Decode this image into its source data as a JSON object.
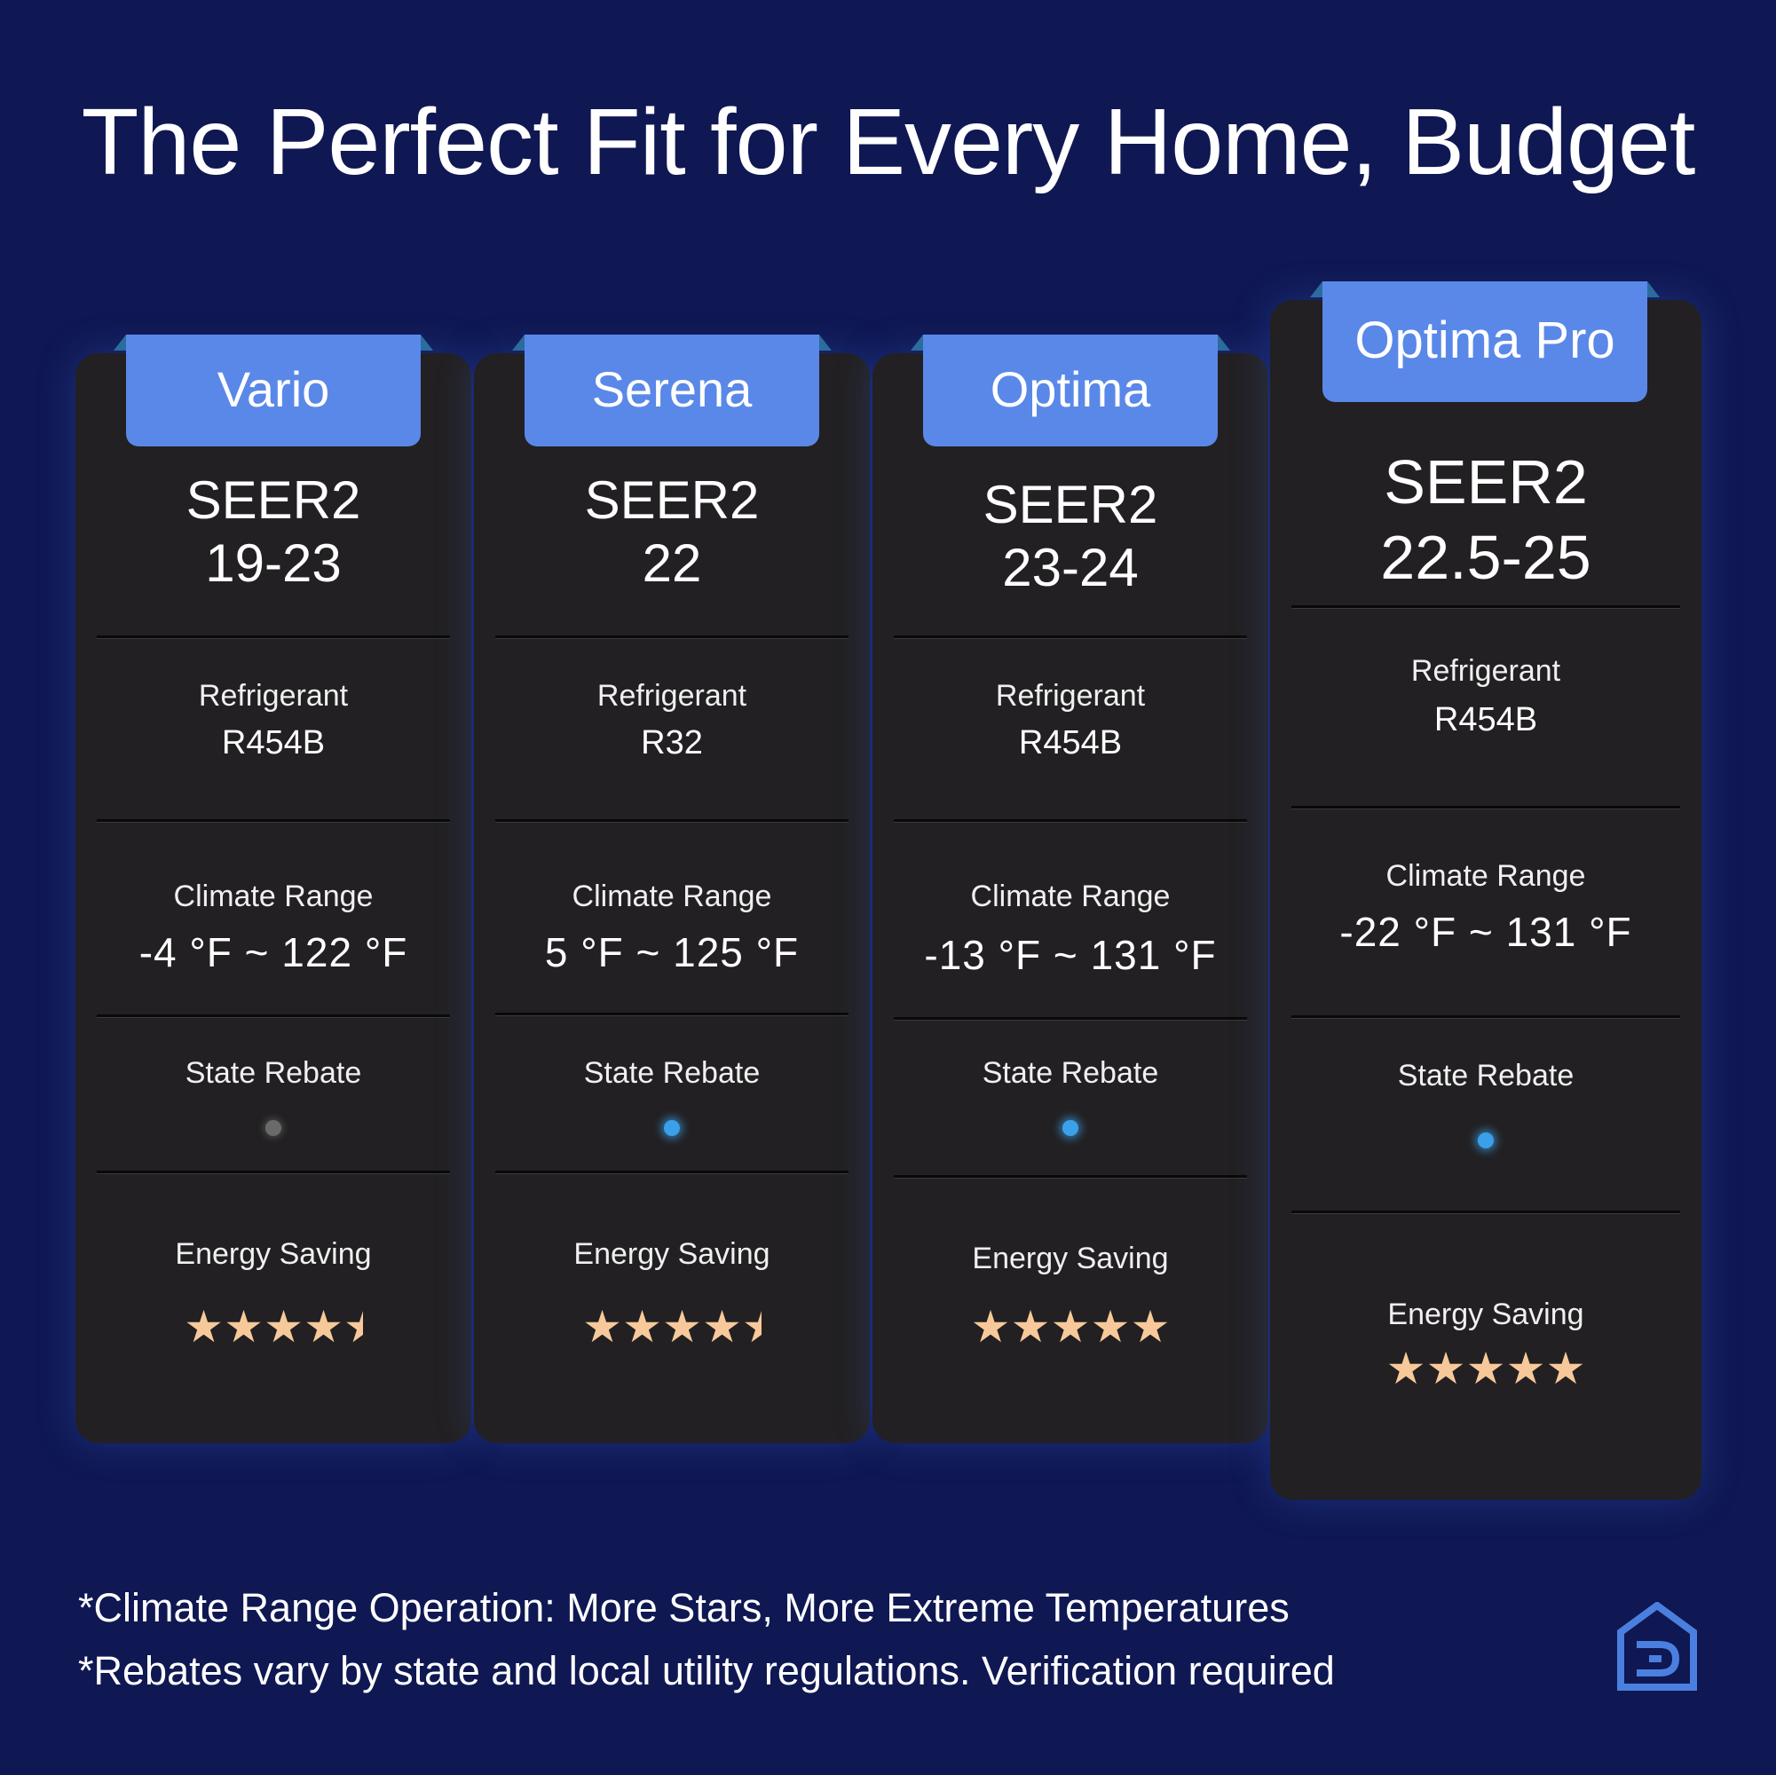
{
  "title": "The Perfect Fit for Every Home, Budget",
  "products": [
    {
      "name": "Vario",
      "seer_label": "SEER2",
      "seer_value": "19-23",
      "refrigerant_label": "Refrigerant",
      "refrigerant": "R454B",
      "climate_label": "Climate Range",
      "climate_range": "-4 °F ~ 122 °F",
      "rebate_label": "State Rebate",
      "state_rebate": false,
      "energy_label": "Energy Saving",
      "energy_stars": 4.5
    },
    {
      "name": "Serena",
      "seer_label": "SEER2",
      "seer_value": "22",
      "refrigerant_label": "Refrigerant",
      "refrigerant": "R32",
      "climate_label": "Climate Range",
      "climate_range": "5 °F ~ 125 °F",
      "rebate_label": "State Rebate",
      "state_rebate": true,
      "energy_label": "Energy Saving",
      "energy_stars": 4.5
    },
    {
      "name": "Optima",
      "seer_label": "SEER2",
      "seer_value": "23-24",
      "refrigerant_label": "Refrigerant",
      "refrigerant": "R454B",
      "climate_label": "Climate Range",
      "climate_range": "-13 °F ~ 131 °F",
      "rebate_label": "State Rebate",
      "state_rebate": true,
      "energy_label": "Energy Saving",
      "energy_stars": 5
    },
    {
      "name": "Optima Pro",
      "seer_label": "SEER2",
      "seer_value": "22.5-25",
      "refrigerant_label": "Refrigerant",
      "refrigerant": "R454B",
      "climate_label": "Climate Range",
      "climate_range": "-22 °F ~ 131 °F",
      "rebate_label": "State Rebate",
      "state_rebate": true,
      "energy_label": "Energy Saving",
      "energy_stars": 5
    }
  ],
  "footnotes": [
    "*Climate Range Operation: More Stars, More Extreme Temperatures",
    "*Rebates vary by state and local utility regulations. Verification required"
  ],
  "colors": {
    "background": "#0f1852",
    "card": "#222022",
    "tab": "#5a88e8",
    "star": "#f7c99a",
    "rebate_on": "#3aa0e8",
    "logo": "#4a7fe0"
  },
  "logo_icon": "house-logo-icon"
}
